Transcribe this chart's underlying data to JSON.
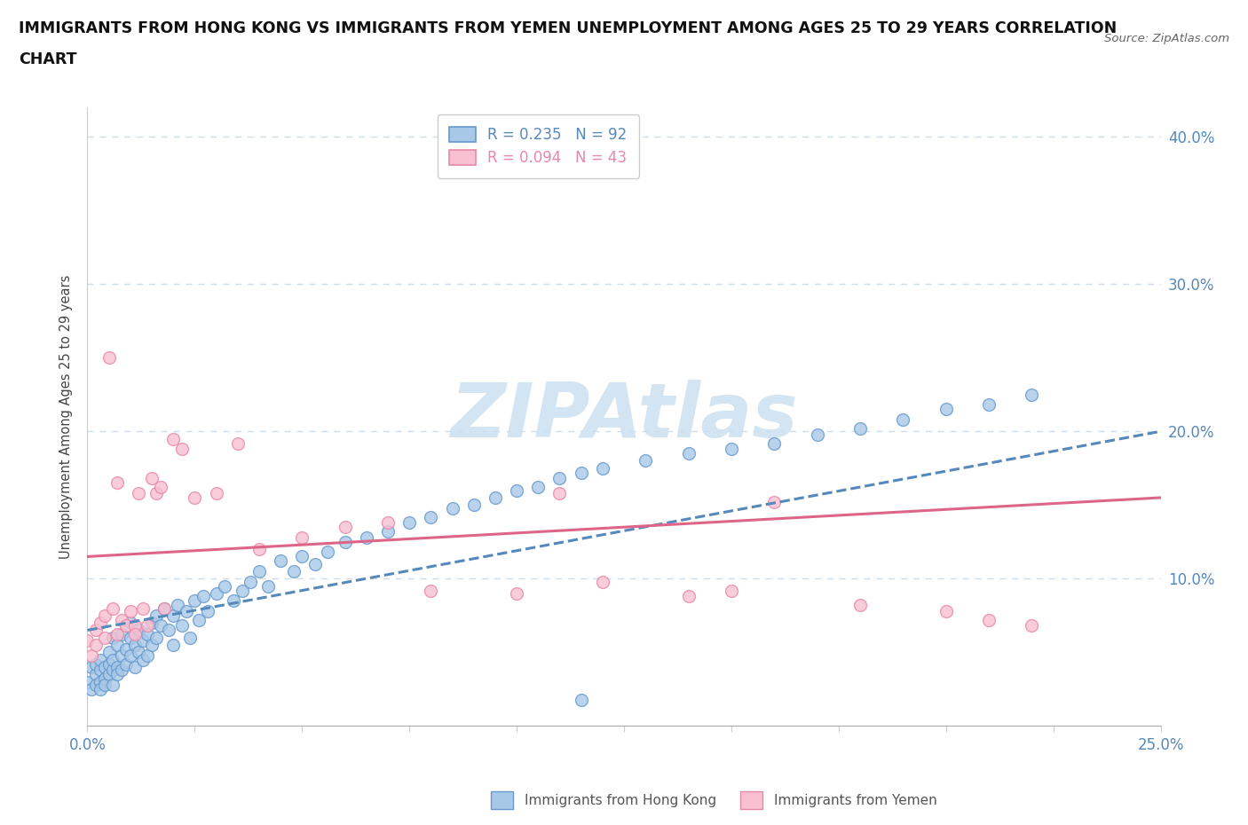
{
  "title_line1": "IMMIGRANTS FROM HONG KONG VS IMMIGRANTS FROM YEMEN UNEMPLOYMENT AMONG AGES 25 TO 29 YEARS CORRELATION",
  "title_line2": "CHART",
  "source": "Source: ZipAtlas.com",
  "ylabel": "Unemployment Among Ages 25 to 29 years",
  "xlim": [
    0.0,
    0.25
  ],
  "ylim": [
    0.0,
    0.42
  ],
  "xticks": [
    0.0,
    0.025,
    0.05,
    0.075,
    0.1,
    0.125,
    0.15,
    0.175,
    0.2,
    0.225,
    0.25
  ],
  "xticklabels": [
    "0.0%",
    "",
    "",
    "",
    "",
    "",
    "",
    "",
    "",
    "",
    "25.0%"
  ],
  "yticks": [
    0.0,
    0.1,
    0.2,
    0.3,
    0.4
  ],
  "yticklabels_right": [
    "",
    "10.0%",
    "20.0%",
    "30.0%",
    "40.0%"
  ],
  "hk_color": "#a8c8e8",
  "hk_edge_color": "#6699cc",
  "hk_line_color": "#5588bb",
  "yemen_color": "#f8c0d0",
  "yemen_edge_color": "#e888a8",
  "yemen_line_color": "#dd6688",
  "hk_R": 0.235,
  "hk_N": 92,
  "yemen_R": 0.094,
  "yemen_N": 43,
  "watermark": "ZIPAtlas",
  "watermark_color": "#cce0f0",
  "legend_label_hk": "Immigrants from Hong Kong",
  "legend_label_yemen": "Immigrants from Yemen",
  "dotted_grid_color": "#ccddee",
  "hk_line_start_y": 0.065,
  "hk_line_end_y": 0.2,
  "yemen_line_start_y": 0.115,
  "yemen_line_end_y": 0.155,
  "hk_scatter_x": [
    0.0,
    0.001,
    0.001,
    0.002,
    0.002,
    0.002,
    0.003,
    0.003,
    0.003,
    0.003,
    0.004,
    0.004,
    0.004,
    0.005,
    0.005,
    0.005,
    0.006,
    0.006,
    0.006,
    0.006,
    0.007,
    0.007,
    0.007,
    0.008,
    0.008,
    0.008,
    0.009,
    0.009,
    0.01,
    0.01,
    0.01,
    0.011,
    0.011,
    0.012,
    0.012,
    0.013,
    0.013,
    0.014,
    0.014,
    0.015,
    0.015,
    0.016,
    0.016,
    0.017,
    0.018,
    0.019,
    0.02,
    0.02,
    0.021,
    0.022,
    0.023,
    0.024,
    0.025,
    0.026,
    0.027,
    0.028,
    0.03,
    0.032,
    0.034,
    0.036,
    0.038,
    0.04,
    0.042,
    0.045,
    0.048,
    0.05,
    0.053,
    0.056,
    0.06,
    0.065,
    0.07,
    0.075,
    0.08,
    0.085,
    0.09,
    0.095,
    0.1,
    0.105,
    0.11,
    0.115,
    0.12,
    0.13,
    0.14,
    0.15,
    0.16,
    0.17,
    0.18,
    0.19,
    0.2,
    0.21,
    0.22,
    0.115
  ],
  "hk_scatter_y": [
    0.03,
    0.04,
    0.025,
    0.035,
    0.028,
    0.042,
    0.03,
    0.038,
    0.025,
    0.045,
    0.032,
    0.04,
    0.028,
    0.035,
    0.05,
    0.042,
    0.038,
    0.028,
    0.045,
    0.06,
    0.04,
    0.055,
    0.035,
    0.048,
    0.062,
    0.038,
    0.052,
    0.042,
    0.06,
    0.048,
    0.07,
    0.055,
    0.04,
    0.065,
    0.05,
    0.058,
    0.045,
    0.062,
    0.048,
    0.07,
    0.055,
    0.075,
    0.06,
    0.068,
    0.08,
    0.065,
    0.075,
    0.055,
    0.082,
    0.068,
    0.078,
    0.06,
    0.085,
    0.072,
    0.088,
    0.078,
    0.09,
    0.095,
    0.085,
    0.092,
    0.098,
    0.105,
    0.095,
    0.112,
    0.105,
    0.115,
    0.11,
    0.118,
    0.125,
    0.128,
    0.132,
    0.138,
    0.142,
    0.148,
    0.15,
    0.155,
    0.16,
    0.162,
    0.168,
    0.172,
    0.175,
    0.18,
    0.185,
    0.188,
    0.192,
    0.198,
    0.202,
    0.208,
    0.215,
    0.218,
    0.225,
    0.018
  ],
  "yemen_scatter_x": [
    0.0,
    0.001,
    0.002,
    0.002,
    0.003,
    0.004,
    0.004,
    0.005,
    0.006,
    0.007,
    0.007,
    0.008,
    0.009,
    0.01,
    0.011,
    0.012,
    0.013,
    0.015,
    0.016,
    0.018,
    0.02,
    0.022,
    0.025,
    0.03,
    0.035,
    0.04,
    0.05,
    0.06,
    0.07,
    0.08,
    0.1,
    0.12,
    0.14,
    0.15,
    0.16,
    0.18,
    0.2,
    0.21,
    0.22,
    0.011,
    0.014,
    0.017,
    0.11
  ],
  "yemen_scatter_y": [
    0.058,
    0.048,
    0.055,
    0.065,
    0.07,
    0.06,
    0.075,
    0.25,
    0.08,
    0.062,
    0.165,
    0.072,
    0.068,
    0.078,
    0.068,
    0.158,
    0.08,
    0.168,
    0.158,
    0.08,
    0.195,
    0.188,
    0.155,
    0.158,
    0.192,
    0.12,
    0.128,
    0.135,
    0.138,
    0.092,
    0.09,
    0.098,
    0.088,
    0.092,
    0.152,
    0.082,
    0.078,
    0.072,
    0.068,
    0.062,
    0.068,
    0.162,
    0.158
  ]
}
